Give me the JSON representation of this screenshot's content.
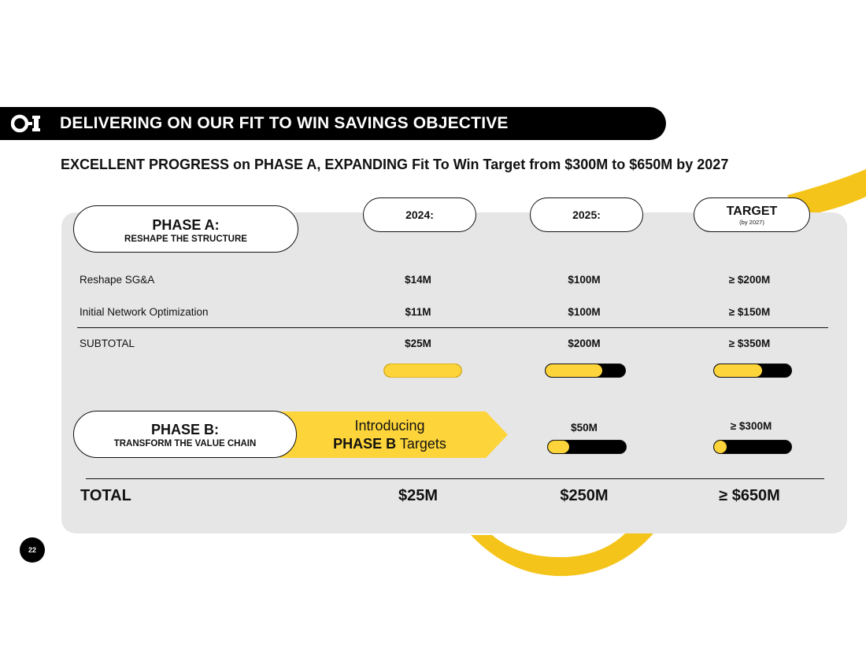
{
  "header": {
    "title": "DELIVERING ON OUR  FIT TO WIN SAVINGS OBJECTIVE"
  },
  "subtitle": {
    "part1": "EXCELLENT PROGRESS",
    "part2": " on ",
    "part3": "PHASE A, EXPANDING",
    "part4": " Fit To Win Target from $300M to $650M by 2027"
  },
  "phase_a": {
    "title": "PHASE A:",
    "subtitle": "RESHAPE THE STRUCTURE"
  },
  "phase_b": {
    "title": "PHASE B:",
    "subtitle": "TRANSFORM THE VALUE CHAIN"
  },
  "columns": {
    "c2024": "2024:",
    "c2025": "2025:",
    "target": "TARGET",
    "target_note": "(by 2027)"
  },
  "rows": [
    {
      "label": "Reshape SG&A",
      "v2024": "$14M",
      "v2025": "$100M",
      "target": "≥ $200M"
    },
    {
      "label": "Initial Network Optimization",
      "v2024": "$11M",
      "v2025": "$100M",
      "target": "≥ $150M"
    },
    {
      "label": "SUBTOTAL",
      "v2024": "$25M",
      "v2025": "$200M",
      "target": "≥ $350M"
    }
  ],
  "progress": {
    "phase_a_2024": 1.0,
    "phase_a_2025": 0.71,
    "phase_a_target": 0.62,
    "phase_b_2025": 0.27,
    "phase_b_target": 0.16
  },
  "phase_b_intro": {
    "line1": "Introducing",
    "line2_bold": "PHASE B",
    "line2_rest": " Targets"
  },
  "phase_b_values": {
    "v2025": "$50M",
    "target": "≥ $300M"
  },
  "total": {
    "label": "TOTAL",
    "v2024": "$25M",
    "v2025": "$250M",
    "target": "≥ $650M"
  },
  "page_number": "22",
  "colors": {
    "accent": "#fdd43a",
    "dark": "#000000",
    "panel": "#e6e6e6"
  },
  "icons": {
    "logo": "oi-logo-icon"
  }
}
